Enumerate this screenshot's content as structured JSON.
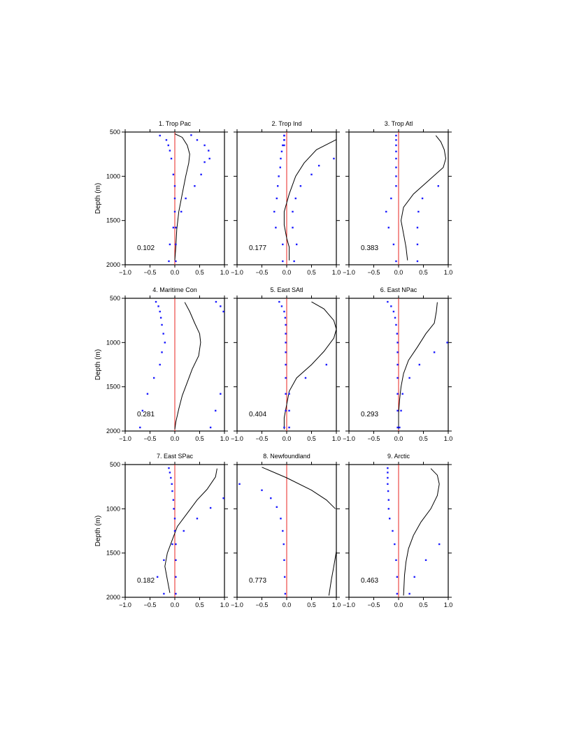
{
  "chart_data": [
    {
      "type": "scatter",
      "title": "1. Trop Pac",
      "xlabel": "",
      "ylabel": "Depth (m)",
      "xlim": [
        -1,
        1
      ],
      "ylim": [
        2000,
        500
      ],
      "annotation": "0.102",
      "xticks": [
        "−1.0",
        "−0.5",
        "0.0",
        "0.5",
        "1.0"
      ],
      "yticks": [
        "500",
        "1000",
        "1500",
        "2000"
      ],
      "line": [
        [
          0,
          520
        ],
        [
          0.15,
          560
        ],
        [
          0.25,
          650
        ],
        [
          0.3,
          750
        ],
        [
          0.28,
          850
        ],
        [
          0.22,
          1000
        ],
        [
          0.15,
          1200
        ],
        [
          0.08,
          1400
        ],
        [
          0.04,
          1600
        ],
        [
          0.02,
          1800
        ],
        [
          0,
          1950
        ]
      ],
      "dots_left": [
        [
          -0.3,
          540
        ],
        [
          -0.17,
          590
        ],
        [
          -0.13,
          650
        ],
        [
          -0.1,
          710
        ],
        [
          -0.07,
          800
        ],
        [
          -0.03,
          980
        ],
        [
          0,
          1110
        ],
        [
          0,
          1250
        ],
        [
          0,
          1400
        ],
        [
          -0.03,
          1580
        ],
        [
          -0.1,
          1770
        ],
        [
          -0.12,
          1960
        ]
      ],
      "dots_right": [
        [
          0.33,
          535
        ],
        [
          0.45,
          590
        ],
        [
          0.6,
          650
        ],
        [
          0.68,
          710
        ],
        [
          0.7,
          800
        ],
        [
          0.6,
          840
        ],
        [
          0.53,
          980
        ],
        [
          0.4,
          1110
        ],
        [
          0.22,
          1250
        ],
        [
          0.13,
          1400
        ],
        [
          0.02,
          1580
        ],
        [
          0.02,
          1770
        ],
        [
          0.02,
          1960
        ]
      ]
    },
    {
      "type": "scatter",
      "title": "2. Trop Ind",
      "xlabel": "",
      "ylabel": "",
      "xlim": [
        -1,
        1
      ],
      "ylim": [
        2000,
        500
      ],
      "annotation": "0.177",
      "xticks": [
        "−1.0",
        "−0.5",
        "0.0",
        "0.5",
        "1.0"
      ],
      "yticks": [],
      "line": [
        [
          1,
          585
        ],
        [
          0.6,
          700
        ],
        [
          0.35,
          850
        ],
        [
          0.18,
          1000
        ],
        [
          0.05,
          1200
        ],
        [
          -0.05,
          1400
        ],
        [
          -0.05,
          1550
        ],
        [
          0,
          1700
        ],
        [
          0.05,
          1800
        ],
        [
          0.05,
          1950
        ]
      ],
      "dots_left": [
        [
          -0.05,
          540
        ],
        [
          -0.05,
          590
        ],
        [
          -0.08,
          650
        ],
        [
          -0.1,
          720
        ],
        [
          -0.12,
          800
        ],
        [
          -0.13,
          900
        ],
        [
          -0.16,
          1000
        ],
        [
          -0.18,
          1110
        ],
        [
          -0.2,
          1250
        ],
        [
          -0.25,
          1400
        ],
        [
          -0.22,
          1580
        ],
        [
          -0.08,
          1770
        ],
        [
          -0.08,
          1960
        ]
      ],
      "dots_right": [
        [
          -0.05,
          540
        ],
        [
          -0.05,
          590
        ],
        [
          -0.05,
          650
        ],
        [
          0.95,
          800
        ],
        [
          0.65,
          880
        ],
        [
          0.5,
          980
        ],
        [
          0.28,
          1110
        ],
        [
          0.18,
          1250
        ],
        [
          0.12,
          1400
        ],
        [
          0.12,
          1580
        ],
        [
          0.2,
          1770
        ],
        [
          0.15,
          1960
        ]
      ]
    },
    {
      "type": "scatter",
      "title": "3. Trop Atl",
      "xlabel": "",
      "ylabel": "",
      "xlim": [
        -1,
        1
      ],
      "ylim": [
        2000,
        500
      ],
      "annotation": "0.383",
      "xticks": [
        "−1.0",
        "−0.5",
        "0.0",
        "0.5",
        "1.0"
      ],
      "yticks": [],
      "line": [
        [
          0.75,
          540
        ],
        [
          0.85,
          610
        ],
        [
          0.92,
          700
        ],
        [
          0.95,
          800
        ],
        [
          0.9,
          900
        ],
        [
          0.6,
          1050
        ],
        [
          0.3,
          1200
        ],
        [
          0.1,
          1350
        ],
        [
          0.05,
          1500
        ],
        [
          0.1,
          1650
        ],
        [
          0.15,
          1800
        ],
        [
          0.18,
          1950
        ]
      ],
      "dots_left": [
        [
          -0.05,
          540
        ],
        [
          -0.05,
          590
        ],
        [
          -0.05,
          650
        ],
        [
          -0.05,
          720
        ],
        [
          -0.05,
          800
        ],
        [
          -0.05,
          900
        ],
        [
          -0.05,
          1000
        ],
        [
          -0.05,
          1110
        ],
        [
          -0.15,
          1250
        ],
        [
          -0.25,
          1400
        ],
        [
          -0.2,
          1580
        ],
        [
          -0.1,
          1770
        ],
        [
          -0.05,
          1960
        ]
      ],
      "dots_right": [
        [
          0.8,
          1110
        ],
        [
          0.48,
          1250
        ],
        [
          0.4,
          1400
        ],
        [
          0.38,
          1580
        ],
        [
          0.38,
          1770
        ],
        [
          0.38,
          1960
        ]
      ]
    },
    {
      "type": "scatter",
      "title": "4. Maritime Con",
      "xlabel": "",
      "ylabel": "Depth (m)",
      "xlim": [
        -1,
        1
      ],
      "ylim": [
        2000,
        500
      ],
      "annotation": "0.281",
      "xticks": [
        "−1.0",
        "−0.5",
        "0.0",
        "0.5",
        "1.0"
      ],
      "yticks": [
        "500",
        "1000",
        "1500",
        "2000"
      ],
      "line": [
        [
          0.2,
          545
        ],
        [
          0.3,
          650
        ],
        [
          0.4,
          780
        ],
        [
          0.5,
          900
        ],
        [
          0.52,
          1000
        ],
        [
          0.48,
          1150
        ],
        [
          0.35,
          1300
        ],
        [
          0.25,
          1450
        ],
        [
          0.15,
          1600
        ],
        [
          0.08,
          1750
        ],
        [
          0.02,
          1900
        ],
        [
          0,
          1980
        ]
      ],
      "dots_left": [
        [
          -0.38,
          540
        ],
        [
          -0.33,
          590
        ],
        [
          -0.3,
          650
        ],
        [
          -0.28,
          720
        ],
        [
          -0.26,
          800
        ],
        [
          -0.23,
          900
        ],
        [
          -0.2,
          1000
        ],
        [
          -0.26,
          1110
        ],
        [
          -0.3,
          1250
        ],
        [
          -0.42,
          1400
        ],
        [
          -0.55,
          1580
        ],
        [
          -0.65,
          1770
        ],
        [
          -0.7,
          1960
        ]
      ],
      "dots_right": [
        [
          0.83,
          540
        ],
        [
          0.92,
          590
        ],
        [
          0.98,
          650
        ],
        [
          0.92,
          1580
        ],
        [
          0.82,
          1770
        ],
        [
          0.72,
          1960
        ]
      ]
    },
    {
      "type": "scatter",
      "title": "5. East SAtl",
      "xlabel": "",
      "ylabel": "",
      "xlim": [
        -1,
        1
      ],
      "ylim": [
        2000,
        500
      ],
      "annotation": "0.404",
      "xticks": [
        "−1.0",
        "−0.5",
        "0.0",
        "0.5",
        "1.0"
      ],
      "yticks": [],
      "line": [
        [
          0.5,
          540
        ],
        [
          0.75,
          620
        ],
        [
          0.95,
          750
        ],
        [
          1,
          850
        ],
        [
          0.95,
          950
        ],
        [
          0.75,
          1100
        ],
        [
          0.5,
          1250
        ],
        [
          0.2,
          1400
        ],
        [
          0.05,
          1550
        ],
        [
          0,
          1700
        ],
        [
          -0.05,
          1850
        ],
        [
          -0.05,
          1980
        ]
      ],
      "dots_left": [
        [
          -0.15,
          540
        ],
        [
          -0.1,
          590
        ],
        [
          -0.05,
          650
        ],
        [
          -0.03,
          720
        ],
        [
          -0.02,
          800
        ],
        [
          -0.02,
          900
        ],
        [
          -0.02,
          1000
        ],
        [
          -0.02,
          1110
        ],
        [
          -0.02,
          1250
        ],
        [
          -0.02,
          1400
        ],
        [
          -0.02,
          1580
        ],
        [
          -0.02,
          1770
        ],
        [
          -0.05,
          1960
        ]
      ],
      "dots_right": [
        [
          0.8,
          1250
        ],
        [
          0.38,
          1400
        ],
        [
          0.05,
          1580
        ],
        [
          0.05,
          1770
        ],
        [
          0.05,
          1960
        ]
      ]
    },
    {
      "type": "scatter",
      "title": "6. East NPac",
      "xlabel": "",
      "ylabel": "",
      "xlim": [
        -1,
        1
      ],
      "ylim": [
        2000,
        500
      ],
      "annotation": "0.293",
      "xticks": [
        "−1.0",
        "−0.5",
        "0.0",
        "0.5",
        "1.0"
      ],
      "yticks": [],
      "line": [
        [
          0.78,
          545
        ],
        [
          0.76,
          650
        ],
        [
          0.72,
          780
        ],
        [
          0.55,
          900
        ],
        [
          0.38,
          1050
        ],
        [
          0.2,
          1200
        ],
        [
          0.1,
          1350
        ],
        [
          0.05,
          1500
        ],
        [
          0.02,
          1650
        ],
        [
          0,
          1800
        ],
        [
          0,
          1980
        ]
      ],
      "dots_left": [
        [
          -0.22,
          540
        ],
        [
          -0.15,
          590
        ],
        [
          -0.1,
          650
        ],
        [
          -0.07,
          720
        ],
        [
          -0.05,
          800
        ],
        [
          -0.03,
          900
        ],
        [
          -0.02,
          1000
        ],
        [
          -0.02,
          1110
        ],
        [
          -0.02,
          1250
        ],
        [
          -0.02,
          1400
        ],
        [
          -0.02,
          1580
        ],
        [
          -0.02,
          1770
        ],
        [
          -0.02,
          1960
        ]
      ],
      "dots_right": [
        [
          0.98,
          1000
        ],
        [
          0.72,
          1110
        ],
        [
          0.42,
          1250
        ],
        [
          0.22,
          1400
        ],
        [
          0.08,
          1580
        ],
        [
          0.05,
          1770
        ],
        [
          0.02,
          1960
        ]
      ]
    },
    {
      "type": "scatter",
      "title": "7. East SPac",
      "xlabel": "",
      "ylabel": "Depth (m)",
      "xlim": [
        -1,
        1
      ],
      "ylim": [
        2000,
        500
      ],
      "annotation": "0.182",
      "xticks": [
        "−1.0",
        "−0.5",
        "0.0",
        "0.5",
        "1.0"
      ],
      "yticks": [
        "500",
        "1000",
        "1500",
        "2000"
      ],
      "line": [
        [
          0.85,
          545
        ],
        [
          0.82,
          640
        ],
        [
          0.65,
          780
        ],
        [
          0.45,
          900
        ],
        [
          0.25,
          1050
        ],
        [
          0.05,
          1200
        ],
        [
          -0.05,
          1350
        ],
        [
          -0.15,
          1500
        ],
        [
          -0.2,
          1650
        ],
        [
          -0.15,
          1800
        ],
        [
          -0.1,
          1950
        ]
      ],
      "dots_left": [
        [
          -0.12,
          540
        ],
        [
          -0.1,
          590
        ],
        [
          -0.08,
          650
        ],
        [
          -0.06,
          720
        ],
        [
          -0.05,
          800
        ],
        [
          -0.03,
          900
        ],
        [
          -0.02,
          1000
        ],
        [
          0,
          1110
        ],
        [
          0,
          1250
        ],
        [
          -0.05,
          1400
        ],
        [
          -0.22,
          1580
        ],
        [
          -0.35,
          1770
        ],
        [
          -0.22,
          1960
        ]
      ],
      "dots_right": [
        [
          0.98,
          880
        ],
        [
          0.72,
          990
        ],
        [
          0.45,
          1110
        ],
        [
          0.18,
          1250
        ],
        [
          0.02,
          1400
        ],
        [
          0.02,
          1580
        ],
        [
          0.02,
          1770
        ],
        [
          0.02,
          1960
        ]
      ]
    },
    {
      "type": "scatter",
      "title": "8. Newfoundland",
      "xlabel": "",
      "ylabel": "",
      "xlim": [
        -1,
        1
      ],
      "ylim": [
        2000,
        500
      ],
      "annotation": "0.773",
      "xticks": [
        "−1.0",
        "−0.5",
        "0.0",
        "0.5",
        "1.0"
      ],
      "yticks": [],
      "line_segments": [
        [
          [
            -0.5,
            530
          ],
          [
            0,
            650
          ],
          [
            0.5,
            790
          ],
          [
            0.8,
            900
          ],
          [
            0.98,
            1000
          ]
        ],
        [
          [
            1,
            1480
          ],
          [
            0.95,
            1650
          ],
          [
            0.9,
            1800
          ],
          [
            0.85,
            1980
          ]
        ]
      ],
      "dots_left": [
        [
          -0.95,
          720
        ],
        [
          -0.5,
          790
        ],
        [
          -0.32,
          880
        ],
        [
          -0.2,
          980
        ],
        [
          -0.12,
          1110
        ],
        [
          -0.08,
          1250
        ],
        [
          -0.06,
          1400
        ],
        [
          -0.05,
          1580
        ],
        [
          -0.04,
          1770
        ],
        [
          -0.03,
          1960
        ]
      ],
      "dots_right": []
    },
    {
      "type": "scatter",
      "title": "9. Arctic",
      "xlabel": "",
      "ylabel": "",
      "xlim": [
        -1,
        1
      ],
      "ylim": [
        2000,
        500
      ],
      "annotation": "0.463",
      "xticks": [
        "−1.0",
        "−0.5",
        "0.0",
        "0.5",
        "1.0"
      ],
      "yticks": [],
      "line": [
        [
          0.65,
          545
        ],
        [
          0.78,
          620
        ],
        [
          0.82,
          720
        ],
        [
          0.78,
          850
        ],
        [
          0.65,
          1000
        ],
        [
          0.45,
          1150
        ],
        [
          0.3,
          1300
        ],
        [
          0.2,
          1450
        ],
        [
          0.15,
          1600
        ],
        [
          0.12,
          1750
        ],
        [
          0.1,
          1980
        ]
      ],
      "dots_left": [
        [
          -0.22,
          540
        ],
        [
          -0.22,
          590
        ],
        [
          -0.22,
          650
        ],
        [
          -0.22,
          720
        ],
        [
          -0.21,
          800
        ],
        [
          -0.2,
          900
        ],
        [
          -0.2,
          1000
        ],
        [
          -0.18,
          1110
        ],
        [
          -0.12,
          1250
        ],
        [
          -0.08,
          1400
        ],
        [
          -0.05,
          1580
        ],
        [
          -0.03,
          1770
        ],
        [
          -0.03,
          1960
        ]
      ],
      "dots_right": [
        [
          0.82,
          1400
        ],
        [
          0.55,
          1580
        ],
        [
          0.32,
          1770
        ],
        [
          0.22,
          1960
        ]
      ]
    }
  ]
}
